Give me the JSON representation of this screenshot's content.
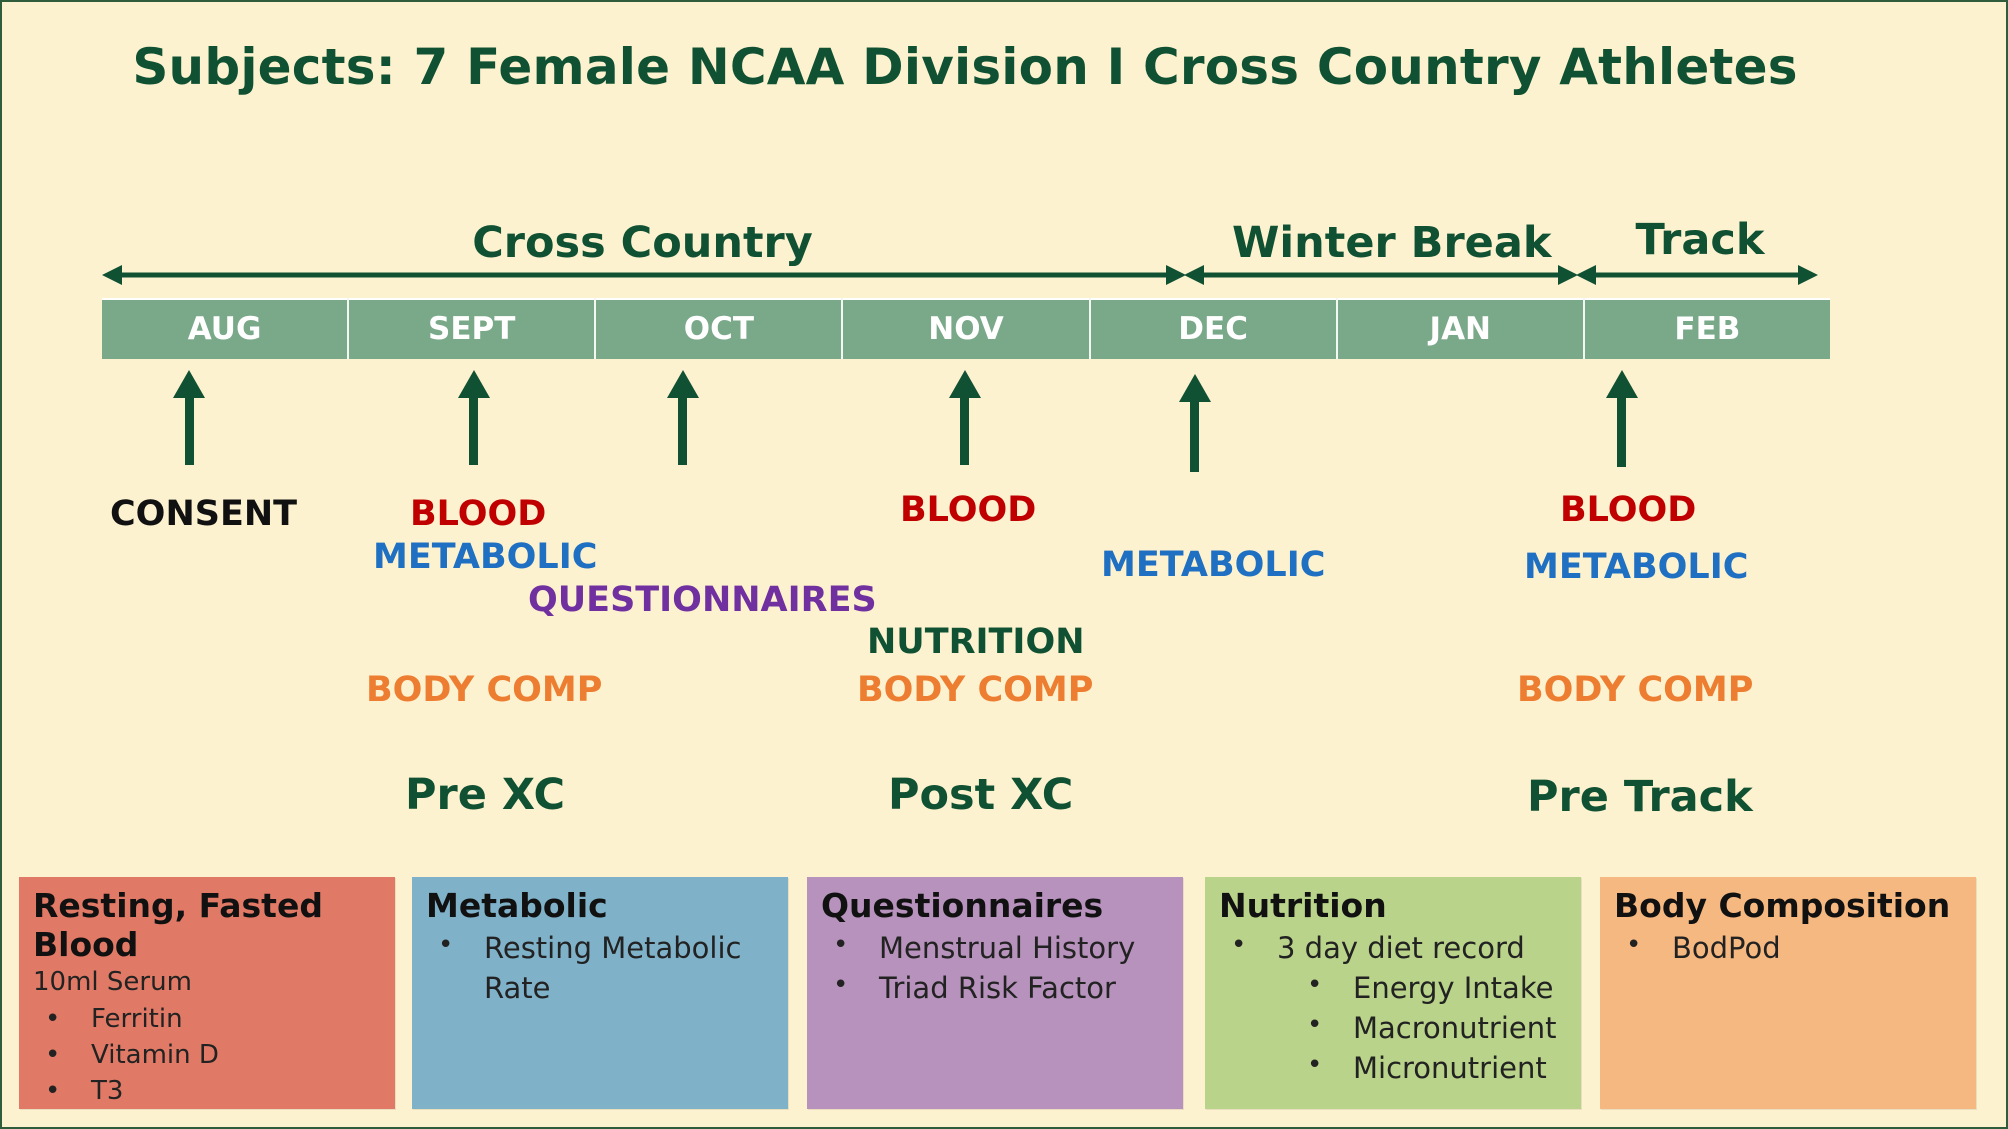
{
  "title": "Subjects: 7 Female NCAA Division I Cross Country Athletes",
  "periods": [
    "Cross Country",
    "Winter Break",
    "Track"
  ],
  "months": [
    "AUG",
    "SEPT",
    "OCT",
    "NOV",
    "DEC",
    "JAN",
    "FEB"
  ],
  "events": {
    "consent": "CONSENT",
    "blood": "BLOOD",
    "metabolic": "METABOLIC",
    "questionnaires": "QUESTIONNAIRES",
    "nutrition": "NUTRITION",
    "body_comp": "BODY COMP"
  },
  "phases": [
    "Pre XC",
    "Post XC",
    "Pre Track"
  ],
  "colors": {
    "background": "#fdf2cf",
    "title": "#0f5132",
    "month_bar": "#7aa98a",
    "blood": "#c00000",
    "metabolic": "#1f6fc2",
    "questionnaires": "#7030a0",
    "nutrition": "#0f5132",
    "body_comp": "#ed7d31",
    "box_blood": "#e07a66",
    "box_metabolic": "#7fb2c9",
    "box_questionnaires": "#b692bc",
    "box_nutrition": "#b9d38a",
    "box_body_comp": "#f5b880"
  },
  "boxes": {
    "blood": {
      "title": "Resting, Fasted Blood",
      "subtitle": "10ml Serum",
      "items": [
        "Ferritin",
        "Vitamin D",
        "T3"
      ]
    },
    "metabolic": {
      "title": "Metabolic",
      "items": [
        "Resting Metabolic Rate"
      ]
    },
    "questionnaires": {
      "title": "Questionnaires",
      "items": [
        "Menstrual History",
        "Triad Risk Factor"
      ]
    },
    "nutrition": {
      "title": "Nutrition",
      "items": [
        "3 day diet record"
      ],
      "subitems": [
        "Energy Intake",
        "Macronutrient",
        "Micronutrient"
      ]
    },
    "body_comp": {
      "title": "Body Composition",
      "items": [
        "BodPod"
      ]
    }
  }
}
